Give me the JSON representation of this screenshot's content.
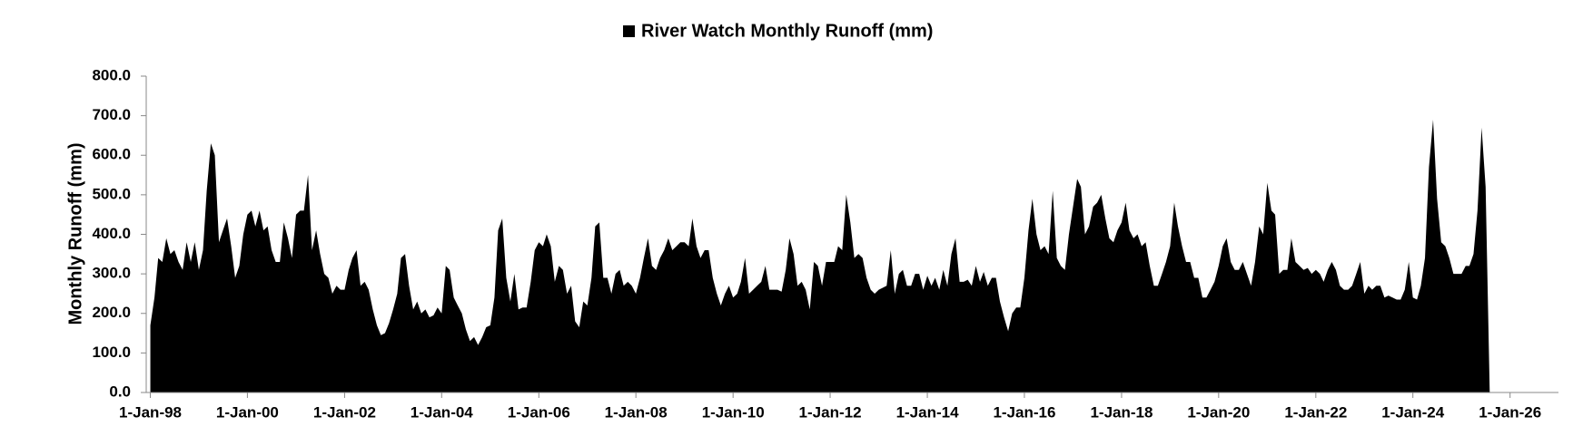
{
  "chart_data": {
    "type": "area",
    "title": "River Watch Monthly Runoff (mm)",
    "y_label": "Monthly Runoff (mm)",
    "x": [
      "1998-01-01",
      "1998-02-01",
      "1998-03-01",
      "1998-04-01",
      "1998-05-01",
      "1998-06-01",
      "1998-07-01",
      "1998-08-01",
      "1998-09-01",
      "1998-10-01",
      "1998-11-01",
      "1998-12-01",
      "1999-01-01",
      "1999-02-01",
      "1999-03-01",
      "1999-04-01",
      "1999-05-01",
      "1999-06-01",
      "1999-07-01",
      "1999-08-01",
      "1999-09-01",
      "1999-10-01",
      "1999-11-01",
      "1999-12-01",
      "2000-01-01",
      "2000-02-01",
      "2000-03-01",
      "2000-04-01",
      "2000-05-01",
      "2000-06-01",
      "2000-07-01",
      "2000-08-01",
      "2000-09-01",
      "2000-10-01",
      "2000-11-01",
      "2000-12-01",
      "2001-01-01",
      "2001-02-01",
      "2001-03-01",
      "2001-04-01",
      "2001-05-01",
      "2001-06-01",
      "2001-07-01",
      "2001-08-01",
      "2001-09-01",
      "2001-10-01",
      "2001-11-01",
      "2001-12-01",
      "2002-01-01",
      "2002-02-01",
      "2002-03-01",
      "2002-04-01",
      "2002-05-01",
      "2002-06-01",
      "2002-07-01",
      "2002-08-01",
      "2002-09-01",
      "2002-10-01",
      "2002-11-01",
      "2002-12-01",
      "2003-01-01",
      "2003-02-01",
      "2003-03-01",
      "2003-04-01",
      "2003-05-01",
      "2003-06-01",
      "2003-07-01",
      "2003-08-01",
      "2003-09-01",
      "2003-10-01",
      "2003-11-01",
      "2003-12-01",
      "2004-01-01",
      "2004-02-01",
      "2004-03-01",
      "2004-04-01",
      "2004-05-01",
      "2004-06-01",
      "2004-07-01",
      "2004-08-01",
      "2004-09-01",
      "2004-10-01",
      "2004-11-01",
      "2004-12-01",
      "2005-01-01",
      "2005-02-01",
      "2005-03-01",
      "2005-04-01",
      "2005-05-01",
      "2005-06-01",
      "2005-07-01",
      "2005-08-01",
      "2005-09-01",
      "2005-10-01",
      "2005-11-01",
      "2005-12-01",
      "2006-01-01",
      "2006-02-01",
      "2006-03-01",
      "2006-04-01",
      "2006-05-01",
      "2006-06-01",
      "2006-07-01",
      "2006-08-01",
      "2006-09-01",
      "2006-10-01",
      "2006-11-01",
      "2006-12-01",
      "2007-01-01",
      "2007-02-01",
      "2007-03-01",
      "2007-04-01",
      "2007-05-01",
      "2007-06-01",
      "2007-07-01",
      "2007-08-01",
      "2007-09-01",
      "2007-10-01",
      "2007-11-01",
      "2007-12-01",
      "2008-01-01",
      "2008-02-01",
      "2008-03-01",
      "2008-04-01",
      "2008-05-01",
      "2008-06-01",
      "2008-07-01",
      "2008-08-01",
      "2008-09-01",
      "2008-10-01",
      "2008-11-01",
      "2008-12-01",
      "2009-01-01",
      "2009-02-01",
      "2009-03-01",
      "2009-04-01",
      "2009-05-01",
      "2009-06-01",
      "2009-07-01",
      "2009-08-01",
      "2009-09-01",
      "2009-10-01",
      "2009-11-01",
      "2009-12-01",
      "2010-01-01",
      "2010-02-01",
      "2010-03-01",
      "2010-04-01",
      "2010-05-01",
      "2010-06-01",
      "2010-07-01",
      "2010-08-01",
      "2010-09-01",
      "2010-10-01",
      "2010-11-01",
      "2010-12-01",
      "2011-01-01",
      "2011-02-01",
      "2011-03-01",
      "2011-04-01",
      "2011-05-01",
      "2011-06-01",
      "2011-07-01",
      "2011-08-01",
      "2011-09-01",
      "2011-10-01",
      "2011-11-01",
      "2011-12-01",
      "2012-01-01",
      "2012-02-01",
      "2012-03-01",
      "2012-04-01",
      "2012-05-01",
      "2012-06-01",
      "2012-07-01",
      "2012-08-01",
      "2012-09-01",
      "2012-10-01",
      "2012-11-01",
      "2012-12-01",
      "2013-01-01",
      "2013-02-01",
      "2013-03-01",
      "2013-04-01",
      "2013-05-01",
      "2013-06-01",
      "2013-07-01",
      "2013-08-01",
      "2013-09-01",
      "2013-10-01",
      "2013-11-01",
      "2013-12-01",
      "2014-01-01",
      "2014-02-01",
      "2014-03-01",
      "2014-04-01",
      "2014-05-01",
      "2014-06-01",
      "2014-07-01",
      "2014-08-01",
      "2014-09-01",
      "2014-10-01",
      "2014-11-01",
      "2014-12-01",
      "2015-01-01",
      "2015-02-01",
      "2015-03-01",
      "2015-04-01",
      "2015-05-01",
      "2015-06-01",
      "2015-07-01",
      "2015-08-01",
      "2015-09-01",
      "2015-10-01",
      "2015-11-01",
      "2015-12-01",
      "2016-01-01",
      "2016-02-01",
      "2016-03-01",
      "2016-04-01",
      "2016-05-01",
      "2016-06-01",
      "2016-07-01",
      "2016-08-01",
      "2016-09-01",
      "2016-10-01",
      "2016-11-01",
      "2016-12-01",
      "2017-01-01",
      "2017-02-01",
      "2017-03-01",
      "2017-04-01",
      "2017-05-01",
      "2017-06-01",
      "2017-07-01",
      "2017-08-01",
      "2017-09-01",
      "2017-10-01",
      "2017-11-01",
      "2017-12-01",
      "2018-01-01",
      "2018-02-01",
      "2018-03-01",
      "2018-04-01",
      "2018-05-01",
      "2018-06-01",
      "2018-07-01",
      "2018-08-01",
      "2018-09-01",
      "2018-10-01",
      "2018-11-01",
      "2018-12-01",
      "2019-01-01",
      "2019-02-01",
      "2019-03-01",
      "2019-04-01",
      "2019-05-01",
      "2019-06-01",
      "2019-07-01",
      "2019-08-01",
      "2019-09-01",
      "2019-10-01",
      "2019-11-01",
      "2019-12-01",
      "2020-01-01",
      "2020-02-01",
      "2020-03-01",
      "2020-04-01",
      "2020-05-01",
      "2020-06-01",
      "2020-07-01",
      "2020-08-01",
      "2020-09-01",
      "2020-10-01",
      "2020-11-01",
      "2020-12-01",
      "2021-01-01",
      "2021-02-01",
      "2021-03-01",
      "2021-04-01",
      "2021-05-01",
      "2021-06-01",
      "2021-07-01",
      "2021-08-01",
      "2021-09-01",
      "2021-10-01",
      "2021-11-01",
      "2021-12-01",
      "2022-01-01",
      "2022-02-01",
      "2022-03-01",
      "2022-04-01",
      "2022-05-01",
      "2022-06-01",
      "2022-07-01",
      "2022-08-01",
      "2022-09-01",
      "2022-10-01",
      "2022-11-01",
      "2022-12-01",
      "2023-01-01",
      "2023-02-01",
      "2023-03-01",
      "2023-04-01",
      "2023-05-01",
      "2023-06-01",
      "2023-07-01",
      "2023-08-01",
      "2023-09-01",
      "2023-10-01",
      "2023-11-01",
      "2023-12-01",
      "2024-01-01",
      "2024-02-01",
      "2024-03-01",
      "2024-04-01",
      "2024-05-01",
      "2024-06-01",
      "2024-07-01",
      "2024-08-01",
      "2024-09-01",
      "2024-10-01",
      "2024-11-01",
      "2024-12-01",
      "2025-01-01",
      "2025-02-01",
      "2025-03-01",
      "2025-04-01",
      "2025-05-01",
      "2025-06-01",
      "2025-07-01",
      "2025-08-01"
    ],
    "series": [
      {
        "name": "River Watch Monthly Runoff (mm)",
        "color": "#000000",
        "values": [
          170,
          240,
          340,
          330,
          390,
          350,
          360,
          330,
          310,
          380,
          330,
          380,
          310,
          360,
          510,
          630,
          600,
          380,
          410,
          440,
          370,
          290,
          320,
          400,
          450,
          460,
          420,
          460,
          410,
          420,
          360,
          330,
          330,
          430,
          390,
          340,
          450,
          460,
          460,
          550,
          360,
          410,
          350,
          300,
          290,
          250,
          270,
          260,
          260,
          310,
          340,
          360,
          270,
          280,
          260,
          210,
          170,
          145,
          150,
          175,
          210,
          250,
          340,
          350,
          270,
          210,
          230,
          200,
          210,
          190,
          195,
          215,
          200,
          320,
          310,
          240,
          220,
          200,
          160,
          130,
          140,
          120,
          140,
          165,
          170,
          240,
          410,
          440,
          290,
          230,
          300,
          210,
          215,
          215,
          280,
          360,
          380,
          370,
          400,
          370,
          280,
          320,
          310,
          250,
          270,
          180,
          165,
          230,
          220,
          290,
          420,
          430,
          290,
          290,
          250,
          300,
          310,
          270,
          280,
          270,
          250,
          290,
          340,
          390,
          320,
          310,
          340,
          360,
          390,
          360,
          370,
          380,
          380,
          370,
          440,
          370,
          340,
          360,
          360,
          290,
          250,
          220,
          250,
          270,
          240,
          250,
          280,
          340,
          250,
          260,
          270,
          280,
          320,
          260,
          260,
          260,
          255,
          310,
          390,
          350,
          270,
          280,
          260,
          210,
          330,
          320,
          270,
          330,
          330,
          330,
          370,
          360,
          500,
          430,
          340,
          350,
          340,
          290,
          260,
          250,
          260,
          265,
          270,
          360,
          250,
          300,
          310,
          270,
          270,
          300,
          300,
          260,
          295,
          270,
          290,
          260,
          310,
          270,
          350,
          390,
          280,
          280,
          285,
          270,
          320,
          280,
          305,
          270,
          290,
          290,
          230,
          190,
          155,
          200,
          215,
          215,
          290,
          410,
          490,
          400,
          360,
          370,
          350,
          510,
          340,
          320,
          310,
          400,
          470,
          540,
          520,
          400,
          420,
          470,
          480,
          500,
          440,
          390,
          380,
          410,
          430,
          480,
          410,
          390,
          400,
          370,
          380,
          320,
          270,
          270,
          300,
          330,
          370,
          480,
          420,
          370,
          330,
          330,
          290,
          290,
          240,
          240,
          260,
          280,
          320,
          370,
          390,
          330,
          310,
          310,
          330,
          300,
          270,
          330,
          420,
          400,
          530,
          460,
          450,
          300,
          310,
          310,
          390,
          330,
          320,
          310,
          315,
          300,
          310,
          300,
          280,
          310,
          330,
          310,
          270,
          260,
          260,
          270,
          300,
          330,
          250,
          270,
          260,
          270,
          270,
          240,
          245,
          240,
          235,
          235,
          260,
          330,
          240,
          235,
          270,
          340,
          570,
          690,
          490,
          380,
          370,
          340,
          300,
          300,
          300,
          320,
          320,
          350,
          460,
          670,
          520,
          0
        ]
      }
    ],
    "xlim": [
      "1997-12-01",
      "2026-12-31"
    ],
    "xticks": [
      {
        "value": "1998-01-01",
        "label": "1-Jan-98"
      },
      {
        "value": "2000-01-01",
        "label": "1-Jan-00"
      },
      {
        "value": "2002-01-01",
        "label": "1-Jan-02"
      },
      {
        "value": "2004-01-01",
        "label": "1-Jan-04"
      },
      {
        "value": "2006-01-01",
        "label": "1-Jan-06"
      },
      {
        "value": "2008-01-01",
        "label": "1-Jan-08"
      },
      {
        "value": "2010-01-01",
        "label": "1-Jan-10"
      },
      {
        "value": "2012-01-01",
        "label": "1-Jan-12"
      },
      {
        "value": "2014-01-01",
        "label": "1-Jan-14"
      },
      {
        "value": "2016-01-01",
        "label": "1-Jan-16"
      },
      {
        "value": "2018-01-01",
        "label": "1-Jan-18"
      },
      {
        "value": "2020-01-01",
        "label": "1-Jan-20"
      },
      {
        "value": "2022-01-01",
        "label": "1-Jan-22"
      },
      {
        "value": "2024-01-01",
        "label": "1-Jan-24"
      },
      {
        "value": "2026-01-01",
        "label": "1-Jan-26"
      }
    ],
    "ylim": [
      0,
      800
    ],
    "yticks": [
      {
        "value": 0,
        "label": "0.0"
      },
      {
        "value": 100,
        "label": "100.0"
      },
      {
        "value": 200,
        "label": "200.0"
      },
      {
        "value": 300,
        "label": "300.0"
      },
      {
        "value": 400,
        "label": "400.0"
      },
      {
        "value": 500,
        "label": "500.0"
      },
      {
        "value": 600,
        "label": "600.0"
      },
      {
        "value": 700,
        "label": "700.0"
      },
      {
        "value": 800,
        "label": "800.0"
      }
    ],
    "grid": false,
    "legend": "top"
  }
}
